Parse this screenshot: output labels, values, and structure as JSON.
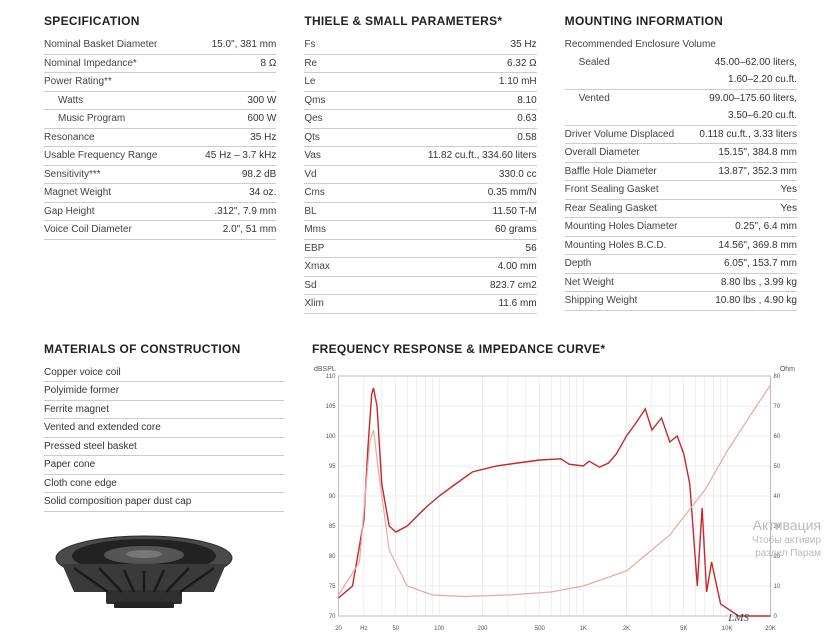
{
  "specification": {
    "title": "SPECIFICATION",
    "rows": [
      {
        "label": "Nominal Basket Diameter",
        "value": "15.0\", 381 mm"
      },
      {
        "label": "Nominal Impedance*",
        "value": "8 Ω"
      },
      {
        "label": "Power Rating**",
        "value": ""
      },
      {
        "label": "Watts",
        "value": "300 W",
        "indent": true
      },
      {
        "label": "Music Program",
        "value": "600 W",
        "indent": true
      },
      {
        "label": "Resonance",
        "value": "35 Hz"
      },
      {
        "label": "Usable Frequency Range",
        "value": "45 Hz – 3.7 kHz"
      },
      {
        "label": "Sensitivity***",
        "value": "98.2 dB"
      },
      {
        "label": "Magnet Weight",
        "value": "34 oz."
      },
      {
        "label": "Gap Height",
        "value": ".312\", 7.9 mm"
      },
      {
        "label": "Voice Coil Diameter",
        "value": "2.0\", 51 mm"
      }
    ]
  },
  "thiele": {
    "title": "THIELE & SMALL PARAMETERS*",
    "rows": [
      {
        "label": "Fs",
        "value": "35 Hz"
      },
      {
        "label": "Re",
        "value": "6.32 Ω"
      },
      {
        "label": "Le",
        "value": "1.10 mH"
      },
      {
        "label": "Qms",
        "value": "8.10"
      },
      {
        "label": "Qes",
        "value": "0.63"
      },
      {
        "label": "Qts",
        "value": "0.58"
      },
      {
        "label": "Vas",
        "value": "11.82 cu.ft., 334.60 liters"
      },
      {
        "label": "Vd",
        "value": "330.0 cc"
      },
      {
        "label": "Cms",
        "value": "0.35 mm/N"
      },
      {
        "label": "BL",
        "value": "11.50 T-M"
      },
      {
        "label": "Mms",
        "value": "60 grams"
      },
      {
        "label": "EBP",
        "value": "56"
      },
      {
        "label": "Xmax",
        "value": "4.00 mm"
      },
      {
        "label": "Sd",
        "value": "823.7 cm2"
      },
      {
        "label": "Xlim",
        "value": "11.6 mm"
      }
    ]
  },
  "mounting": {
    "title": "MOUNTING INFORMATION",
    "rev_label": "Recommended Enclosure Volume",
    "sealed": {
      "label": "Sealed",
      "value1": "45.00–62.00 liters,",
      "value2": "1.60–2.20 cu.ft.",
      "indent": true
    },
    "vented": {
      "label": "Vented",
      "value1": "99.00–175.60 liters,",
      "value2": "3.50–6.20 cu.ft.",
      "indent": true
    },
    "rows": [
      {
        "label": "Driver Volume Displaced",
        "value": "0.118 cu.ft., 3.33 liters"
      },
      {
        "label": "Overall Diameter",
        "value": "15.15\", 384.8 mm"
      },
      {
        "label": "Baffle Hole Diameter",
        "value": "13.87\", 352.3 mm"
      },
      {
        "label": "Front Sealing Gasket",
        "value": "Yes"
      },
      {
        "label": "Rear Sealing Gasket",
        "value": "Yes"
      },
      {
        "label": "Mounting Holes Diameter",
        "value": "0.25\", 6.4 mm"
      },
      {
        "label": "Mounting Holes B.C.D.",
        "value": "14.56\", 369.8 mm"
      },
      {
        "label": "Depth",
        "value": "6.05\", 153.7 mm"
      },
      {
        "label": "Net Weight",
        "value": "8.80 lbs , 3.99 kg"
      },
      {
        "label": "Shipping Weight",
        "value": "10.80 lbs , 4.90 kg"
      }
    ]
  },
  "materials": {
    "title": "MATERIALS OF CONSTRUCTION",
    "items": [
      "Copper voice coil",
      "Polyimide former",
      "Ferrite magnet",
      "Vented and extended core",
      "Pressed steel basket",
      "Paper cone",
      "Cloth cone edge",
      "Solid composition paper dust cap"
    ]
  },
  "chart": {
    "title": "FREQUENCY RESPONSE & IMPEDANCE CURVE*",
    "ylabel_left": "dBSPL",
    "ylabel_right": "Ohm",
    "left_axis": {
      "min": 70,
      "max": 110,
      "ticks": [
        70,
        75,
        80,
        85,
        90,
        95,
        100,
        105,
        110
      ]
    },
    "right_axis": {
      "min": 0,
      "max": 80,
      "ticks": [
        0,
        10,
        20,
        30,
        40,
        50,
        60,
        70,
        80
      ]
    },
    "x_axis": {
      "min_hz": 20,
      "max_hz": 20000,
      "labels": [
        "20",
        "Hz",
        "50",
        "100",
        "200",
        "500",
        "1K",
        "2K",
        "5K",
        "10K",
        "20K"
      ]
    },
    "grid_color": "#dddddd",
    "border_color": "#999999",
    "response_color": "#c62828",
    "impedance_color": "#e8a8a8",
    "background_color": "#ffffff",
    "response": [
      [
        20,
        73
      ],
      [
        25,
        75
      ],
      [
        30,
        86
      ],
      [
        32,
        98
      ],
      [
        34,
        107
      ],
      [
        35,
        108
      ],
      [
        37,
        105
      ],
      [
        40,
        92
      ],
      [
        45,
        85
      ],
      [
        50,
        84
      ],
      [
        60,
        85
      ],
      [
        80,
        88
      ],
      [
        100,
        90
      ],
      [
        130,
        92
      ],
      [
        170,
        94
      ],
      [
        250,
        95
      ],
      [
        350,
        95.5
      ],
      [
        500,
        96
      ],
      [
        700,
        96.2
      ],
      [
        800,
        95.3
      ],
      [
        1000,
        95
      ],
      [
        1100,
        95.8
      ],
      [
        1300,
        94.8
      ],
      [
        1500,
        95.5
      ],
      [
        1700,
        97
      ],
      [
        2000,
        100
      ],
      [
        2300,
        102
      ],
      [
        2700,
        104.5
      ],
      [
        3000,
        101
      ],
      [
        3500,
        103
      ],
      [
        4000,
        99
      ],
      [
        4500,
        100
      ],
      [
        5000,
        97
      ],
      [
        5500,
        92
      ],
      [
        6200,
        75
      ],
      [
        6700,
        88
      ],
      [
        7200,
        74
      ],
      [
        7800,
        79
      ],
      [
        9000,
        72
      ],
      [
        12000,
        70
      ],
      [
        20000,
        70
      ]
    ],
    "impedance_ohm": [
      [
        20,
        7
      ],
      [
        28,
        18
      ],
      [
        33,
        58
      ],
      [
        35,
        62
      ],
      [
        38,
        48
      ],
      [
        45,
        22
      ],
      [
        60,
        10
      ],
      [
        90,
        7
      ],
      [
        150,
        6.5
      ],
      [
        300,
        7
      ],
      [
        600,
        8
      ],
      [
        1000,
        10
      ],
      [
        2000,
        15
      ],
      [
        4000,
        27
      ],
      [
        7000,
        42
      ],
      [
        10000,
        55
      ],
      [
        15000,
        68
      ],
      [
        20000,
        77
      ]
    ],
    "signature": "LMS"
  },
  "watermark": {
    "line1": "Активация",
    "line2": "Чтобы активир",
    "line3": "раздел Парам"
  }
}
